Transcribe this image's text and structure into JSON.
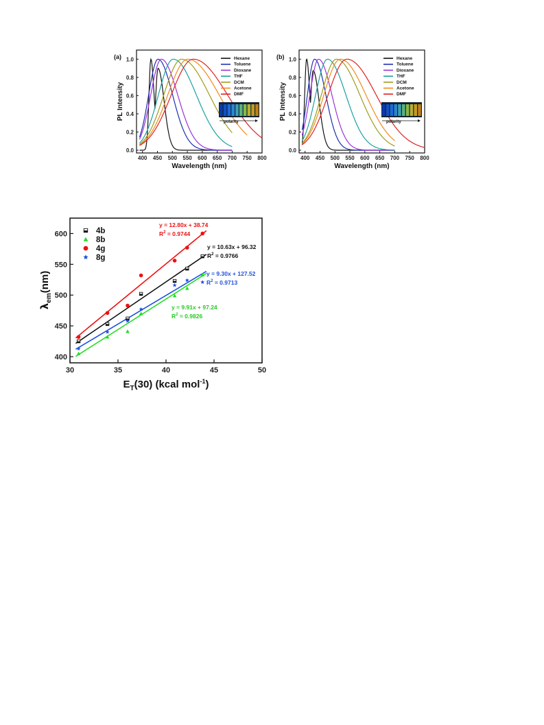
{
  "chart_data": [
    {
      "type": "line",
      "panel_label": "(a)",
      "xlabel": "Wavelength (nm)",
      "ylabel": "PL Intensity",
      "xlim": [
        380,
        800
      ],
      "ylim": [
        -0.03,
        1.1
      ],
      "xticks": [
        400,
        450,
        500,
        550,
        600,
        650,
        700,
        750,
        800
      ],
      "yticks": [
        0.0,
        0.2,
        0.4,
        0.6,
        0.8,
        1.0
      ],
      "legend_position": "top-right",
      "inset_label": "polarity",
      "series": [
        {
          "name": "Hexane",
          "color": "#111111",
          "peak": 428,
          "peak2": 452,
          "peak2_height": 0.72,
          "x_end": 700
        },
        {
          "name": "Toluene",
          "color": "#1a2fb0",
          "peak": 452,
          "x_end": 700
        },
        {
          "name": "Dioxane",
          "color": "#9b30d9",
          "peak": 463,
          "x_end": 700
        },
        {
          "name": "THF",
          "color": "#1aa0a0",
          "peak": 503,
          "x_end": 700
        },
        {
          "name": "DCM",
          "color": "#9c9c1a",
          "peak": 531,
          "x_end": 700
        },
        {
          "name": "Acetone",
          "color": "#f08a1c",
          "peak": 552,
          "x_end": 750
        },
        {
          "name": "DMF",
          "color": "#e02020",
          "peak": 570,
          "x_end": 800
        }
      ]
    },
    {
      "type": "line",
      "panel_label": "(b)",
      "xlabel": "Wavelength (nm)",
      "ylabel": "PL Intensity",
      "xlim": [
        380,
        800
      ],
      "ylim": [
        -0.03,
        1.1
      ],
      "xticks": [
        400,
        450,
        500,
        550,
        600,
        650,
        700,
        750,
        800
      ],
      "yticks": [
        0.0,
        0.2,
        0.4,
        0.6,
        0.8,
        1.0
      ],
      "legend_position": "top-right",
      "inset_label": "polarity",
      "series": [
        {
          "name": "Hexane",
          "color": "#111111",
          "peak": 405,
          "peak2": 427,
          "peak2_height": 0.7,
          "x_end": 700
        },
        {
          "name": "Toluene",
          "color": "#1a2fb0",
          "peak": 432,
          "x_end": 700
        },
        {
          "name": "Dioxane",
          "color": "#9b30d9",
          "peak": 445,
          "x_end": 700
        },
        {
          "name": "THF",
          "color": "#1aa0a0",
          "peak": 475,
          "x_end": 700
        },
        {
          "name": "DCM",
          "color": "#9c9c1a",
          "peak": 505,
          "x_end": 700
        },
        {
          "name": "Acetone",
          "color": "#f08a1c",
          "peak": 518,
          "x_end": 700
        },
        {
          "name": "DMF",
          "color": "#e02020",
          "peak": 540,
          "x_end": 800
        }
      ]
    },
    {
      "type": "scatter",
      "xlabel_main": "E",
      "xlabel_sub": "T",
      "xlabel_mid": "(30) (kcal mol",
      "xlabel_sup": "-1",
      "xlabel_end": ")",
      "ylabel_main": "λ",
      "ylabel_sub": "em",
      "ylabel_end": "(nm)",
      "xlim": [
        30,
        50
      ],
      "ylim": [
        390,
        625
      ],
      "xticks": [
        30,
        35,
        40,
        45,
        50
      ],
      "yticks": [
        400,
        450,
        500,
        550,
        600
      ],
      "legend_position": "top-left",
      "series": [
        {
          "name": "4b",
          "marker": "square-half",
          "color": "#111111",
          "x": [
            30.9,
            33.9,
            36.0,
            37.4,
            40.9,
            42.2,
            43.8
          ],
          "y": [
            425,
            453,
            462,
            502,
            523,
            543,
            563
          ],
          "fit": {
            "slope": 10.63,
            "intercept": 96.32
          },
          "equation": "y = 10.63x + 96.32",
          "r2_label": "R",
          "r2_exp": "2",
          "r2_value": " = 0.9766"
        },
        {
          "name": "8b",
          "marker": "triangle",
          "color": "#22dd22",
          "x": [
            30.9,
            33.9,
            36.0,
            37.4,
            40.9,
            42.2,
            43.8
          ],
          "y": [
            405,
            432,
            441,
            470,
            499,
            511,
            533
          ],
          "fit": {
            "slope": 9.91,
            "intercept": 97.24
          },
          "equation": "y = 9.91x + 97.24",
          "r2_label": "R",
          "r2_exp": "2",
          "r2_value": " = 0.9826"
        },
        {
          "name": "4g",
          "marker": "circle",
          "color": "#ee1111",
          "x": [
            30.9,
            33.9,
            36.0,
            37.4,
            40.9,
            42.2,
            43.8
          ],
          "y": [
            432,
            471,
            483,
            532,
            556,
            577,
            600
          ],
          "fit": {
            "slope": 12.8,
            "intercept": 38.74
          },
          "equation": "y = 12.80x + 38.74",
          "r2_label": "R",
          "r2_exp": "2",
          "r2_value": " = 0.9744"
        },
        {
          "name": "8g",
          "marker": "star",
          "color": "#1e50e0",
          "x": [
            30.9,
            33.9,
            36.0,
            37.4,
            40.9,
            42.2,
            43.8
          ],
          "y": [
            413,
            440,
            458,
            477,
            516,
            524,
            521
          ],
          "fit": {
            "slope": 9.3,
            "intercept": 127.52
          },
          "equation": "y = 9.30x + 127.52",
          "r2_label": "R",
          "r2_exp": "2",
          "r2_value": " = 0.9713"
        }
      ]
    }
  ]
}
